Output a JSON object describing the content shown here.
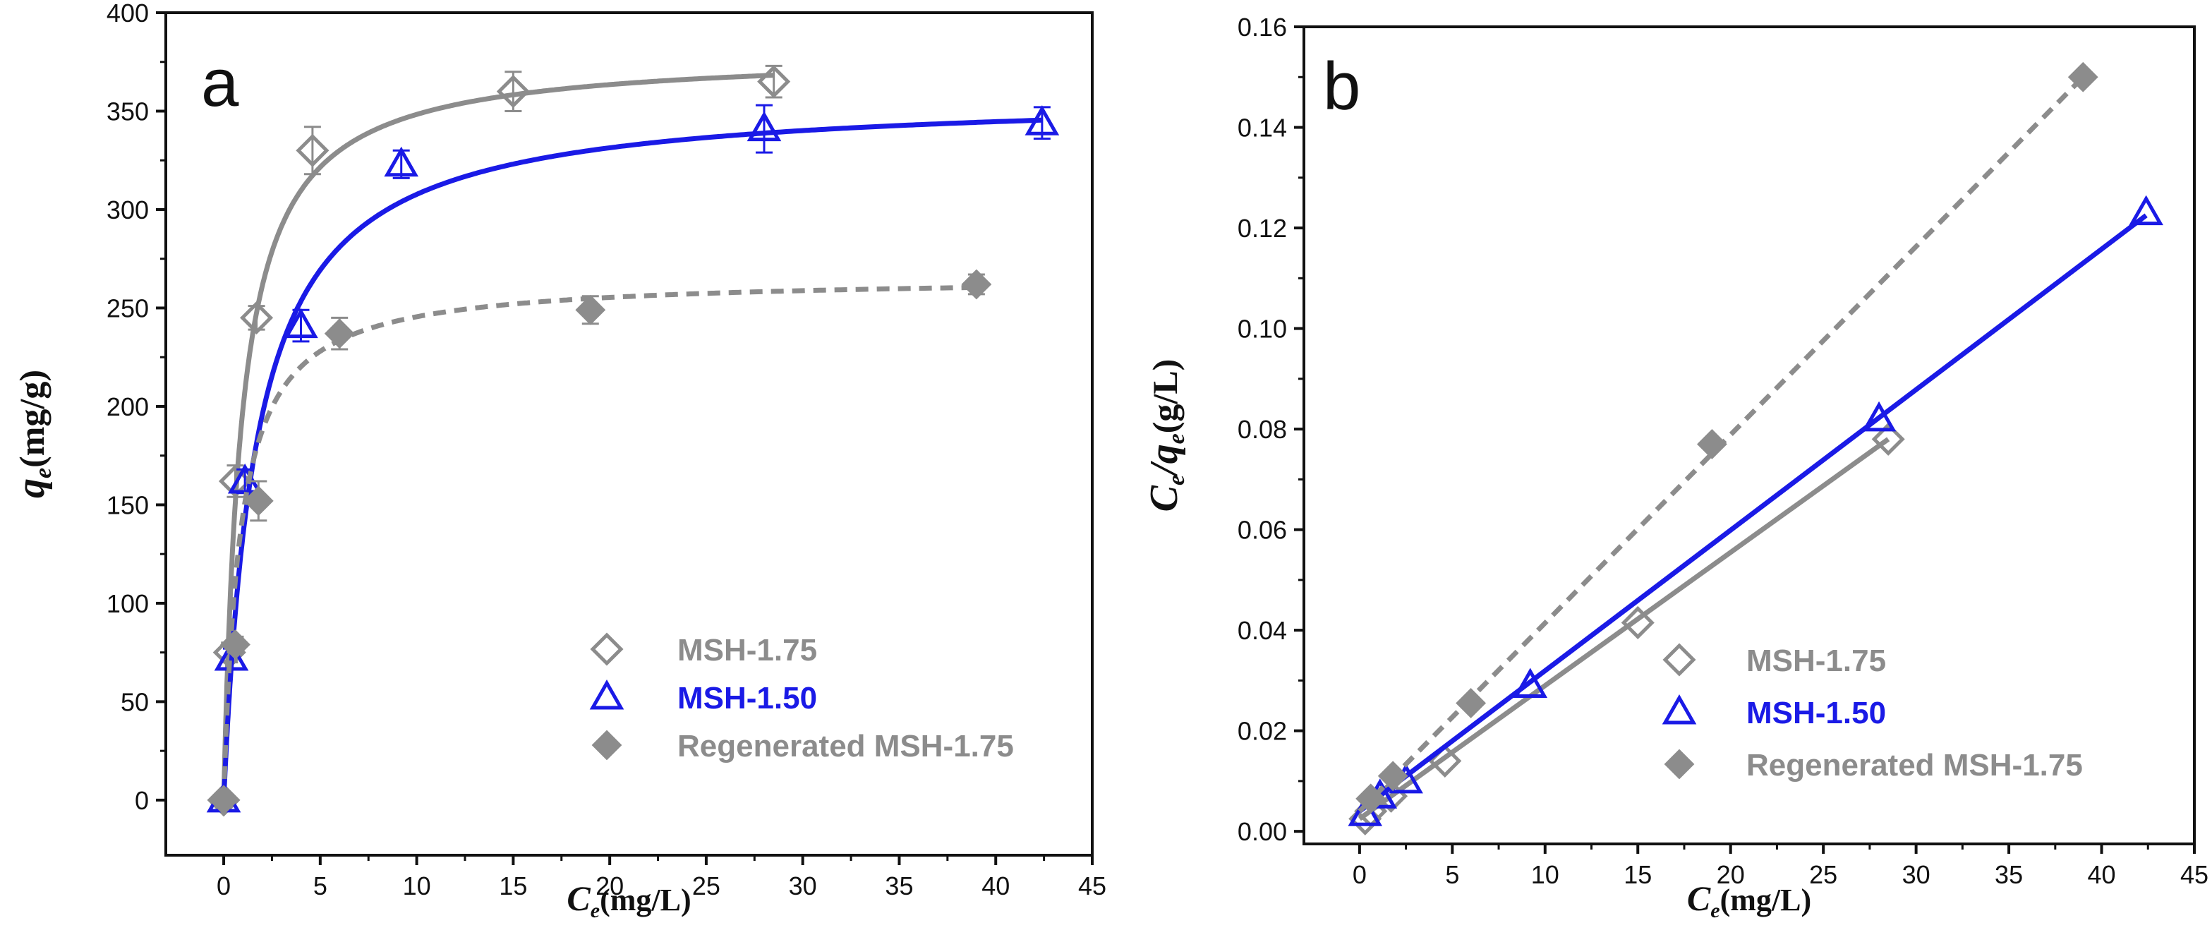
{
  "colors": {
    "msh175": "#8c8c8c",
    "msh150": "#1a1ae6",
    "regen": "#8c8c8c",
    "axis": "#111111"
  },
  "chart_data": [
    {
      "type": "scatter",
      "panel_label": "a",
      "xlabel_main": "C",
      "xlabel_sub": "e",
      "xlabel_unit": "(mg/L)",
      "ylabel_main": "q",
      "ylabel_sub": "e",
      "ylabel_unit": "(mg/g)",
      "xlim": [
        -3,
        45
      ],
      "ylim": [
        -28,
        400
      ],
      "xticks": [
        0,
        5,
        10,
        15,
        20,
        25,
        30,
        35,
        40,
        45
      ],
      "yticks": [
        0,
        50,
        100,
        150,
        200,
        250,
        300,
        350,
        400
      ],
      "ytick_labels": [
        "0",
        "50",
        "100",
        "150",
        "200",
        "250",
        "300",
        "350",
        "400"
      ],
      "legend_position": "bottom-right",
      "series": [
        {
          "name": "MSH-1.75",
          "marker": "diamond-open",
          "color": "#8c8c8c",
          "x": [
            0,
            0.3,
            0.6,
            1.7,
            4.6,
            15,
            28.5
          ],
          "y": [
            0,
            75,
            162,
            245,
            330,
            360,
            365
          ],
          "err": [
            0,
            5,
            8,
            6,
            12,
            10,
            8
          ],
          "fit": {
            "kind": "langmuir",
            "qm": 380,
            "K": 1.1,
            "style": "solid"
          }
        },
        {
          "name": "MSH-1.50",
          "marker": "triangle-open",
          "color": "#1a1ae6",
          "x": [
            0,
            0.4,
            1.1,
            4,
            9.2,
            28,
            42.4
          ],
          "y": [
            0,
            72,
            162,
            241,
            323,
            341,
            344
          ],
          "err": [
            0,
            5,
            6,
            8,
            7,
            12,
            8
          ],
          "fit": {
            "kind": "langmuir",
            "qm": 359,
            "K": 0.6,
            "style": "solid"
          }
        },
        {
          "name": "Regenerated MSH-1.75",
          "marker": "diamond-filled",
          "color": "#8c8c8c",
          "x": [
            0,
            0.6,
            1.8,
            6,
            19,
            39
          ],
          "y": [
            0,
            79,
            152,
            237,
            249,
            262
          ],
          "err": [
            0,
            4,
            10,
            8,
            7,
            5
          ],
          "fit": {
            "kind": "langmuir",
            "qm": 266,
            "K": 1.2,
            "style": "dashed"
          }
        }
      ]
    },
    {
      "type": "scatter",
      "panel_label": "b",
      "xlabel_main": "C",
      "xlabel_sub": "e",
      "xlabel_unit": "(mg/L)",
      "ylabel_main": "C",
      "ylabel_sub": "e",
      "ylabel_mid": "/q",
      "ylabel_sub2": "e",
      "ylabel_unit": "(g/L)",
      "xlim": [
        -3,
        45
      ],
      "ylim": [
        -0.0025,
        0.16
      ],
      "xticks": [
        0,
        5,
        10,
        15,
        20,
        25,
        30,
        35,
        40,
        45
      ],
      "yticks": [
        0,
        0.02,
        0.04,
        0.06,
        0.08,
        0.1,
        0.12,
        0.14,
        0.16
      ],
      "ytick_labels": [
        "0.00",
        "0.02",
        "0.04",
        "0.06",
        "0.08",
        "0.10",
        "0.12",
        "0.14",
        "0.16"
      ],
      "legend_position": "bottom-right",
      "series": [
        {
          "name": "MSH-1.75",
          "marker": "diamond-open",
          "color": "#8c8c8c",
          "x": [
            0.3,
            0.6,
            1.7,
            4.6,
            15,
            28.5
          ],
          "y": [
            0.0025,
            0.004,
            0.007,
            0.014,
            0.0415,
            0.078
          ],
          "fit": {
            "kind": "linear",
            "x0": 0,
            "x1": 28.5,
            "y0": 0.0025,
            "y1": 0.078,
            "style": "solid"
          }
        },
        {
          "name": "MSH-1.50",
          "marker": "triangle-open",
          "color": "#1a1ae6",
          "x": [
            0.3,
            1.1,
            2.5,
            9.2,
            28,
            42.4
          ],
          "y": [
            0.0035,
            0.007,
            0.01,
            0.029,
            0.082,
            0.123
          ],
          "fit": {
            "kind": "linear",
            "x0": 0,
            "x1": 42.4,
            "y0": 0.004,
            "y1": 0.1225,
            "style": "solid"
          }
        },
        {
          "name": "Regenerated MSH-1.75",
          "marker": "diamond-filled",
          "color": "#8c8c8c",
          "x": [
            0.6,
            1.8,
            6,
            19,
            39
          ],
          "y": [
            0.0065,
            0.011,
            0.0255,
            0.077,
            0.15
          ],
          "fit": {
            "kind": "linear",
            "x0": 0,
            "x1": 39,
            "y0": 0.004,
            "y1": 0.15,
            "style": "dashed"
          }
        }
      ]
    }
  ]
}
